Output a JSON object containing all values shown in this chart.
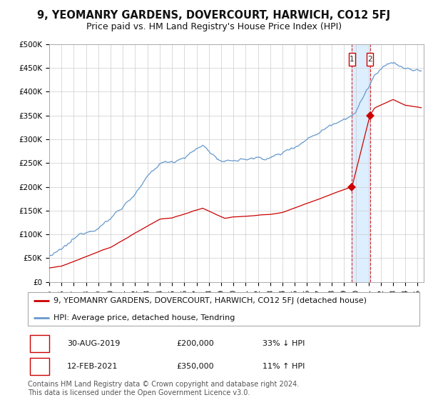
{
  "title": "9, YEOMANRY GARDENS, DOVERCOURT, HARWICH, CO12 5FJ",
  "subtitle": "Price paid vs. HM Land Registry's House Price Index (HPI)",
  "ylabel_ticks": [
    "£0",
    "£50K",
    "£100K",
    "£150K",
    "£200K",
    "£250K",
    "£300K",
    "£350K",
    "£400K",
    "£450K",
    "£500K"
  ],
  "ylim": [
    0,
    500000
  ],
  "xlim_start": 1995.0,
  "xlim_end": 2025.5,
  "sale1_date": 2019.66,
  "sale1_price": 200000,
  "sale1_label": "30-AUG-2019",
  "sale1_pct": "33% ↓ HPI",
  "sale2_date": 2021.12,
  "sale2_price": 350000,
  "sale2_label": "12-FEB-2021",
  "sale2_pct": "11% ↑ HPI",
  "property_legend": "9, YEOMANRY GARDENS, DOVERCOURT, HARWICH, CO12 5FJ (detached house)",
  "hpi_legend": "HPI: Average price, detached house, Tendring",
  "footnote": "Contains HM Land Registry data © Crown copyright and database right 2024.\nThis data is licensed under the Open Government Licence v3.0.",
  "property_color": "#cc0000",
  "hpi_color": "#6699cc",
  "marker_color": "#cc0000",
  "dashed_color": "#cc0000",
  "shade_color": "#ddeeff",
  "background_color": "#ffffff",
  "grid_color": "#cccccc",
  "title_fontsize": 10.5,
  "subtitle_fontsize": 9,
  "tick_fontsize": 7.5,
  "legend_fontsize": 8,
  "table_fontsize": 8,
  "footnote_fontsize": 7
}
